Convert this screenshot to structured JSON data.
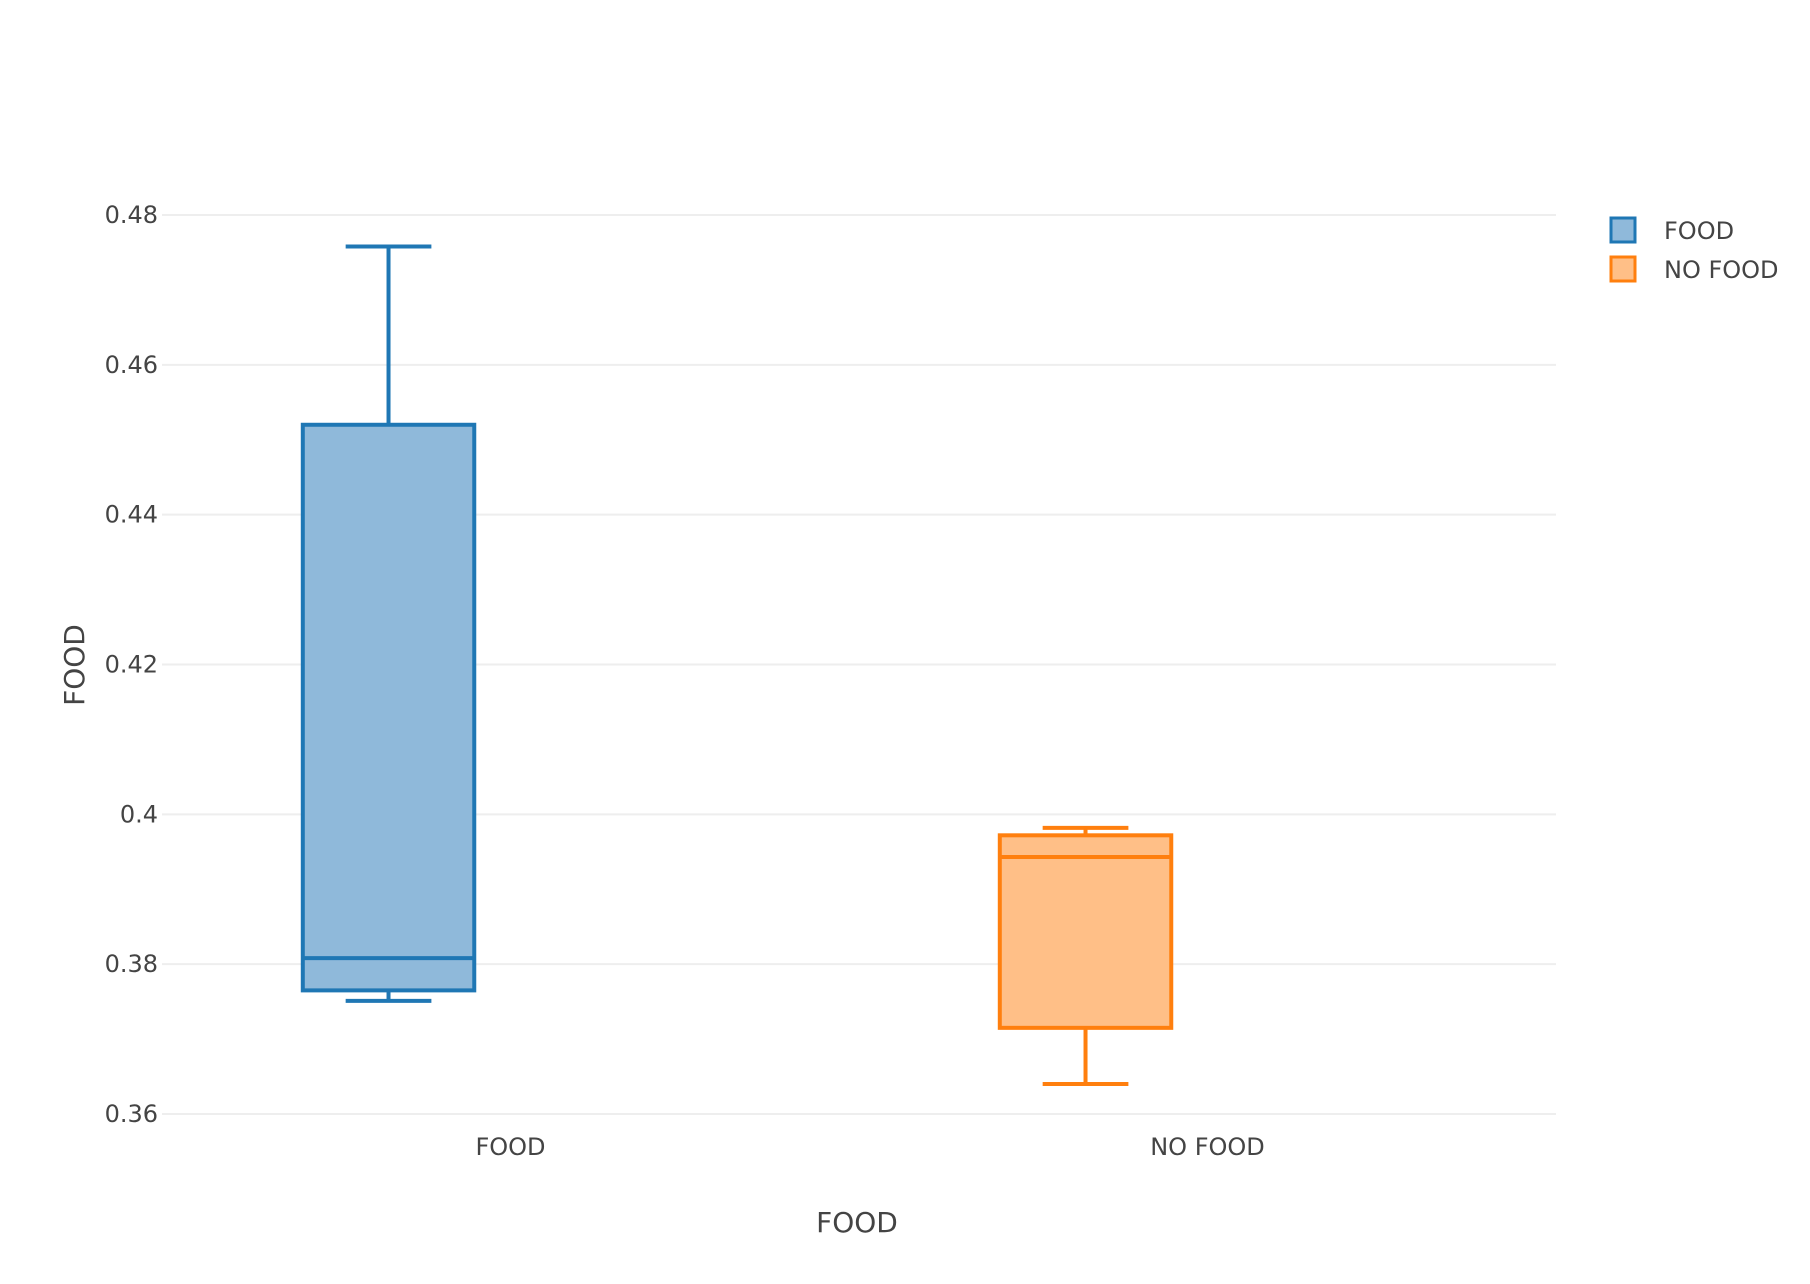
{
  "chart_data": {
    "type": "box",
    "xlabel": "FOOD",
    "ylabel": "FOOD",
    "ylim": [
      0.36,
      0.48
    ],
    "yticks": [
      "0.36",
      "0.38",
      "0.4",
      "0.42",
      "0.44",
      "0.46",
      "0.48"
    ],
    "categories": [
      "FOOD",
      "NO FOOD"
    ],
    "grid": true,
    "legend_position": "top-right",
    "series": [
      {
        "name": "FOOD",
        "category": "FOOD",
        "color": "#1f77b4",
        "fill": "#8fb9da",
        "min": 0.3751,
        "q1": 0.3765,
        "median": 0.3808,
        "q3": 0.452,
        "max": 0.4758
      },
      {
        "name": "NO FOOD",
        "category": "NO FOOD",
        "color": "#ff7f0e",
        "fill": "#ffbf87",
        "min": 0.364,
        "q1": 0.3715,
        "median": 0.3943,
        "q3": 0.3972,
        "max": 0.3982
      }
    ]
  }
}
